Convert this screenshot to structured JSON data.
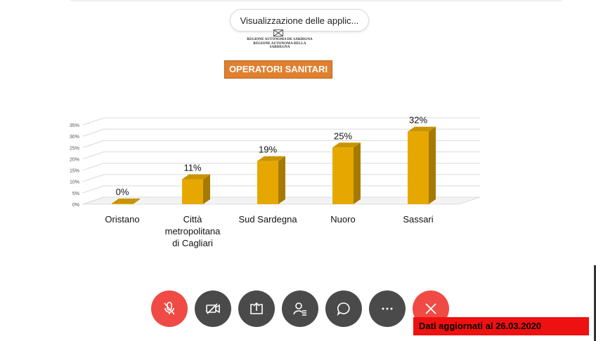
{
  "app_pill": {
    "label": "Visualizzazione delle applic..."
  },
  "logo": {
    "line1": "REGIONE AUTÒNOMA DE SARDIGNA",
    "line2": "REGIONE AUTONOMA DELLA SARDEGNA"
  },
  "slide": {
    "title": "OPERATORI SANITARI",
    "footer_note": "Dati aggiornati al 26.03.2020"
  },
  "chart_data": {
    "type": "bar",
    "title": "OPERATORI SANITARI",
    "categories": [
      "Oristano",
      "Città metropolitana di Cagliari",
      "Sud Sardegna",
      "Nuoro",
      "Sassari"
    ],
    "category_lines": [
      [
        "Oristano"
      ],
      [
        "Città",
        "metropolitana",
        "di Cagliari"
      ],
      [
        "Sud Sardegna"
      ],
      [
        "Nuoro"
      ],
      [
        "Sassari"
      ]
    ],
    "values": [
      0,
      11,
      19,
      25,
      32
    ],
    "value_labels": [
      "0%",
      "11%",
      "19%",
      "25%",
      "32%"
    ],
    "yticks": [
      "0%",
      "5%",
      "10%",
      "15%",
      "20%",
      "25%",
      "30%",
      "35%"
    ],
    "ylim": [
      0,
      35
    ],
    "grid": true,
    "colors": {
      "bar_front": "#e6a800",
      "bar_side": "#a57a00",
      "bar_top": "#c99400",
      "grid": "#d9d9d9"
    }
  },
  "controls": [
    {
      "name": "mic-muted-button",
      "icon": "mic-off-icon",
      "color": "#f04a45"
    },
    {
      "name": "camera-off-button",
      "icon": "camera-off-icon",
      "color": "#4a4a4a"
    },
    {
      "name": "share-screen-button",
      "icon": "share-icon",
      "color": "#4a4a4a"
    },
    {
      "name": "participants-button",
      "icon": "participants-icon",
      "color": "#4a4a4a"
    },
    {
      "name": "chat-button",
      "icon": "chat-icon",
      "color": "#4a4a4a"
    },
    {
      "name": "more-options-button",
      "icon": "more-icon",
      "color": "#4a4a4a"
    },
    {
      "name": "leave-meeting-button",
      "icon": "close-icon",
      "color": "#f04a45"
    }
  ]
}
